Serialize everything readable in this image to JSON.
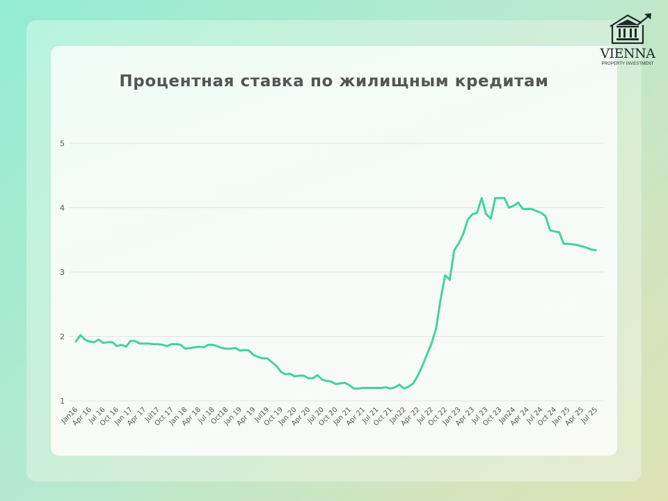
{
  "logo": {
    "name": "VIENNA",
    "subtitle": "PROPERTY INVESTMENT"
  },
  "chart_data": {
    "type": "line",
    "title": "Процентная ставка по жилищным кредитам",
    "xlabel": "",
    "ylabel": "",
    "ylim": [
      1,
      5
    ],
    "yticks": [
      1,
      2,
      3,
      4,
      5
    ],
    "grid": true,
    "legend": null,
    "line_color": "#3fd3a0",
    "x_tick_labels": [
      "Jan16",
      "Apr 16",
      "Jul 16",
      "Oct 16",
      "Jan 17",
      "Apr 17",
      "Jul17",
      "Oct 17",
      "Jan 18",
      "Apr 18",
      "Jul 18",
      "Oct18",
      "Jan 19",
      "Apr 19",
      "Jul19",
      "Oct 19",
      "Jan 20",
      "Apr 20",
      "Jul 20",
      "Oct 20",
      "Jan 21",
      "Apr 21",
      "Jul 21",
      "Oct 21",
      "Jan22",
      "Apr 22",
      "Jul 22",
      "Oct 22",
      "Jan 23",
      "Apr 23",
      "Jul 23",
      "Oct 23",
      "Jan24",
      "Apr 24",
      "Jul 24",
      "Oct 24",
      "Jan 25",
      "Apr 25",
      "Jul 25"
    ],
    "x": [
      "2016-01",
      "2016-02",
      "2016-03",
      "2016-04",
      "2016-05",
      "2016-06",
      "2016-07",
      "2016-08",
      "2016-09",
      "2016-10",
      "2016-11",
      "2016-12",
      "2017-01",
      "2017-02",
      "2017-03",
      "2017-04",
      "2017-05",
      "2017-06",
      "2017-07",
      "2017-08",
      "2017-09",
      "2017-10",
      "2017-11",
      "2017-12",
      "2018-01",
      "2018-02",
      "2018-03",
      "2018-04",
      "2018-05",
      "2018-06",
      "2018-07",
      "2018-08",
      "2018-09",
      "2018-10",
      "2018-11",
      "2018-12",
      "2019-01",
      "2019-02",
      "2019-03",
      "2019-04",
      "2019-05",
      "2019-06",
      "2019-07",
      "2019-08",
      "2019-09",
      "2019-10",
      "2019-11",
      "2019-12",
      "2020-01",
      "2020-02",
      "2020-03",
      "2020-04",
      "2020-05",
      "2020-06",
      "2020-07",
      "2020-08",
      "2020-09",
      "2020-10",
      "2020-11",
      "2020-12",
      "2021-01",
      "2021-02",
      "2021-03",
      "2021-04",
      "2021-05",
      "2021-06",
      "2021-07",
      "2021-08",
      "2021-09",
      "2021-10",
      "2021-11",
      "2021-12",
      "2022-01",
      "2022-02",
      "2022-03",
      "2022-04",
      "2022-05",
      "2022-06",
      "2022-07",
      "2022-08",
      "2022-09",
      "2022-10",
      "2022-11",
      "2022-12",
      "2023-01",
      "2023-02",
      "2023-03",
      "2023-04",
      "2023-05",
      "2023-06",
      "2023-07",
      "2023-08",
      "2023-09",
      "2023-10",
      "2023-11",
      "2023-12",
      "2024-01",
      "2024-02",
      "2024-03",
      "2024-04",
      "2024-05",
      "2024-06",
      "2024-07",
      "2024-08",
      "2024-09",
      "2024-10",
      "2024-11",
      "2024-12",
      "2025-01",
      "2025-02",
      "2025-03",
      "2025-04",
      "2025-05",
      "2025-06",
      "2025-07"
    ],
    "series": [
      {
        "name": "Процентная ставка",
        "values": [
          1.92,
          2.02,
          1.95,
          1.92,
          1.91,
          1.95,
          1.9,
          1.91,
          1.91,
          1.85,
          1.87,
          1.84,
          1.93,
          1.93,
          1.89,
          1.89,
          1.89,
          1.88,
          1.88,
          1.87,
          1.85,
          1.88,
          1.88,
          1.87,
          1.81,
          1.82,
          1.83,
          1.84,
          1.83,
          1.87,
          1.87,
          1.85,
          1.82,
          1.81,
          1.81,
          1.82,
          1.78,
          1.79,
          1.78,
          1.71,
          1.68,
          1.66,
          1.66,
          1.6,
          1.54,
          1.45,
          1.41,
          1.42,
          1.38,
          1.39,
          1.39,
          1.35,
          1.35,
          1.4,
          1.33,
          1.31,
          1.3,
          1.26,
          1.27,
          1.28,
          1.24,
          1.19,
          1.19,
          1.2,
          1.2,
          1.2,
          1.2,
          1.2,
          1.21,
          1.19,
          1.21,
          1.25,
          1.19,
          1.22,
          1.27,
          1.39,
          1.54,
          1.72,
          1.89,
          2.12,
          2.58,
          2.95,
          2.88,
          3.34,
          3.45,
          3.6,
          3.82,
          3.9,
          3.92,
          4.15,
          3.9,
          3.83,
          4.15,
          4.15,
          4.15,
          4.0,
          4.03,
          4.08,
          3.98,
          3.98,
          3.98,
          3.95,
          3.92,
          3.87,
          3.65,
          3.63,
          3.62,
          3.44,
          3.44,
          3.43,
          3.42,
          3.4,
          3.38,
          3.35,
          3.34
        ]
      }
    ]
  }
}
